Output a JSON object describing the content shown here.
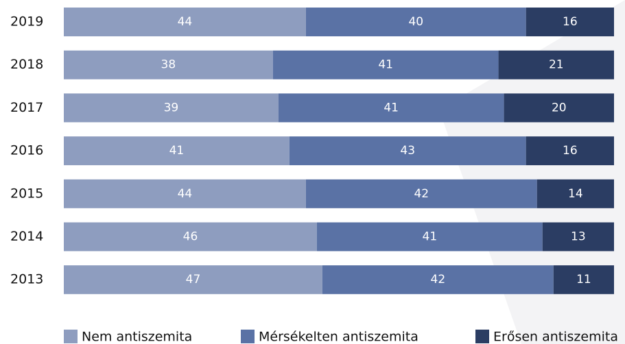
{
  "chart_data": {
    "type": "stacked-bar-horizontal",
    "categories": [
      "2019",
      "2018",
      "2017",
      "2016",
      "2015",
      "2014",
      "2013"
    ],
    "series": [
      {
        "name": "Nem antiszemita",
        "color": "#8e9dbf",
        "values": [
          44,
          38,
          39,
          41,
          44,
          46,
          47
        ]
      },
      {
        "name": "Mérsékelten antiszemita",
        "color": "#5a72a5",
        "values": [
          40,
          41,
          41,
          43,
          42,
          41,
          42
        ]
      },
      {
        "name": "Erősen antiszemita",
        "color": "#2b3d63",
        "values": [
          16,
          21,
          20,
          16,
          14,
          13,
          11
        ]
      }
    ]
  }
}
